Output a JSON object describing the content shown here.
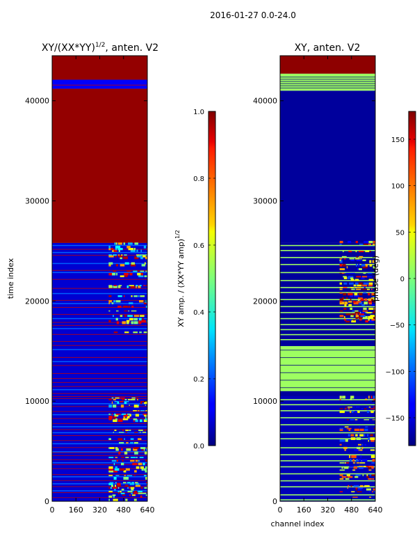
{
  "figure": {
    "suptitle": "2016-01-27 0.0-24.0"
  },
  "chart_data": [
    {
      "type": "heatmap",
      "title_main": "XY/(XX*YY)",
      "title_exponent": "1/2",
      "title_suffix": ", anten. V2",
      "xlabel": "",
      "ylabel": "time index",
      "xlim": [
        0,
        640
      ],
      "ylim": [
        0,
        44500
      ],
      "xticks": [
        0,
        160,
        320,
        480,
        640
      ],
      "yticks": [
        0,
        10000,
        20000,
        30000,
        40000
      ],
      "colormap": "jet",
      "colorbar": {
        "label_main": "XY amp. / (XX*YY amp)",
        "label_exponent": "1/2",
        "range": [
          0.0,
          1.0
        ],
        "ticks": [
          "0.0",
          "0.2",
          "0.4",
          "0.6",
          "0.8",
          "1.0"
        ]
      },
      "bands": [
        {
          "y0": 42100,
          "y1": 44500,
          "value": 0.98
        },
        {
          "y0": 41200,
          "y1": 42100,
          "value": 0.12
        },
        {
          "y0": 25800,
          "y1": 41200,
          "value": 0.98
        },
        {
          "y0": 0,
          "y1": 25800,
          "value": 0.08
        }
      ],
      "red_lines_y": [
        41600,
        25200,
        24600,
        23100,
        22200,
        21300,
        20100,
        19400,
        18700,
        17900,
        17600,
        16700,
        16000,
        15600,
        14400,
        13600,
        12800,
        12300,
        11900,
        11500,
        10800,
        10500,
        10300,
        9500,
        9000,
        8300,
        7800,
        7200,
        6600,
        6100,
        5400,
        4900,
        4600,
        4200,
        3700,
        3300,
        2700,
        2100,
        1500,
        900,
        400
      ],
      "light_blue_lines_y": [
        25600,
        24900,
        23800,
        22900,
        20800,
        19800,
        18300,
        17300,
        15200,
        14000,
        11200,
        9800,
        8700,
        7500,
        6900,
        5800,
        5000,
        3900,
        2500,
        1800,
        1100
      ],
      "active_channel_band": [
        380,
        640
      ],
      "active_time_ranges": [
        [
          16800,
          25800
        ],
        [
          0,
          10500
        ]
      ]
    },
    {
      "type": "heatmap",
      "title": "XY, anten. V2",
      "xlabel": "channel index",
      "ylabel": "",
      "xlim": [
        0,
        640
      ],
      "ylim": [
        0,
        44500
      ],
      "xticks": [
        0,
        160,
        320,
        480,
        640
      ],
      "yticks": [
        0,
        10000,
        20000,
        30000,
        40000
      ],
      "colormap": "jet",
      "colorbar": {
        "label": "phase (deg)",
        "range": [
          -180,
          180
        ],
        "ticks": [
          "−150",
          "−100",
          "−50",
          "0",
          "50",
          "100",
          "150"
        ],
        "tick_values": [
          -150,
          -100,
          -50,
          0,
          50,
          100,
          150
        ]
      },
      "bands": [
        {
          "y0": 42700,
          "y1": 44500,
          "value": 175
        },
        {
          "y0": 41000,
          "y1": 42700,
          "value": 10
        },
        {
          "y0": 25800,
          "y1": 41000,
          "value": -170
        },
        {
          "y0": 10500,
          "y1": 25800,
          "value": -170
        },
        {
          "y0": 0,
          "y1": 10500,
          "value": -160
        }
      ],
      "green_block_ranges": [
        [
          11000,
          15500
        ],
        [
          41200,
          42500
        ]
      ],
      "green_lines_y": [
        25600,
        25100,
        24400,
        23700,
        22900,
        22100,
        21400,
        20900,
        20200,
        19500,
        18900,
        18300,
        17700,
        17200,
        16700,
        16200,
        10200,
        9700,
        9100,
        8400,
        7700,
        6900,
        6300,
        5400,
        4700,
        4100,
        3500,
        2800,
        2100,
        1500,
        700,
        200
      ],
      "active_channel_band": [
        400,
        640
      ],
      "active_time_ranges": [
        [
          17500,
          25800
        ],
        [
          0,
          10500
        ]
      ]
    }
  ]
}
